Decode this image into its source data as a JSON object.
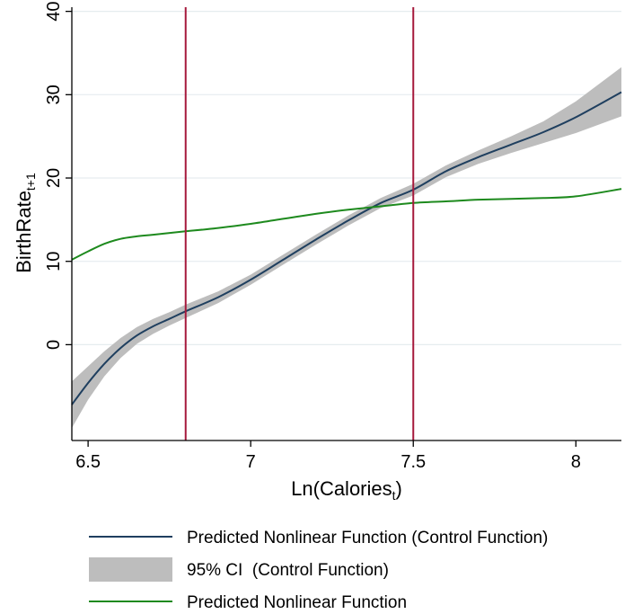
{
  "chart_data": {
    "type": "line",
    "xlabel_main": "Ln(Calories",
    "xlabel_sub": "t",
    "xlabel_close": ")",
    "ylabel_main": "BirthRate",
    "ylabel_sub": "t+1",
    "xlim": [
      6.45,
      8.14
    ],
    "ylim": [
      -11.5,
      40.5
    ],
    "x_ticks": [
      6.5,
      7,
      7.5,
      8
    ],
    "x_tick_labels": [
      "6.5",
      "7",
      "7.5",
      "8"
    ],
    "y_ticks": [
      0,
      10,
      20,
      30,
      40
    ],
    "y_tick_labels": [
      "0",
      "10",
      "20",
      "30",
      "40"
    ],
    "grid": "horizontal",
    "vlines": {
      "x": [
        6.8,
        7.5
      ],
      "color": "#a6193c"
    },
    "series": [
      {
        "name": "Predicted Nonlinear Function (Control Function)",
        "color": "#1f3f5f",
        "x": [
          6.45,
          6.5,
          6.55,
          6.6,
          6.65,
          6.7,
          6.75,
          6.8,
          6.9,
          7.0,
          7.1,
          7.2,
          7.3,
          7.4,
          7.5,
          7.6,
          7.7,
          7.8,
          7.9,
          8.0,
          8.14
        ],
        "y": [
          -7.2,
          -4.6,
          -2.3,
          -0.4,
          1.1,
          2.2,
          3.1,
          4.0,
          5.7,
          7.8,
          10.2,
          12.6,
          14.9,
          17.0,
          18.6,
          20.8,
          22.5,
          24.0,
          25.5,
          27.3,
          30.3
        ]
      },
      {
        "name": "Predicted Nonlinear Function",
        "color": "#1e8a1e",
        "x": [
          6.45,
          6.5,
          6.55,
          6.6,
          6.65,
          6.7,
          6.8,
          6.9,
          7.0,
          7.1,
          7.2,
          7.3,
          7.4,
          7.5,
          7.6,
          7.7,
          7.8,
          7.9,
          8.0,
          8.14
        ],
        "y": [
          10.2,
          11.2,
          12.1,
          12.7,
          13.0,
          13.2,
          13.6,
          14.0,
          14.5,
          15.1,
          15.7,
          16.2,
          16.6,
          17.0,
          17.2,
          17.4,
          17.5,
          17.6,
          17.8,
          18.7
        ]
      }
    ],
    "ci_band": {
      "name": "95% CI  (Control Function)",
      "color": "#bdbdbd",
      "x": [
        6.45,
        6.5,
        6.55,
        6.6,
        6.65,
        6.7,
        6.75,
        6.8,
        6.9,
        7.0,
        7.1,
        7.2,
        7.3,
        7.4,
        7.5,
        7.6,
        7.7,
        7.8,
        7.9,
        8.0,
        8.14
      ],
      "lower": [
        -10.0,
        -6.6,
        -3.8,
        -1.6,
        0.1,
        1.3,
        2.3,
        3.2,
        5.0,
        7.2,
        9.6,
        12.0,
        14.3,
        16.4,
        17.9,
        20.1,
        21.7,
        23.0,
        24.2,
        25.4,
        27.4
      ],
      "upper": [
        -4.4,
        -2.6,
        -0.8,
        0.8,
        2.1,
        3.1,
        3.9,
        4.8,
        6.4,
        8.4,
        10.8,
        13.2,
        15.5,
        17.6,
        19.3,
        21.5,
        23.3,
        25.0,
        26.8,
        29.2,
        33.3
      ]
    },
    "legend": {
      "placement": "bottom",
      "entries": [
        "Predicted Nonlinear Function (Control Function)",
        "95% CI  (Control Function)",
        "Predicted Nonlinear Function"
      ]
    }
  }
}
